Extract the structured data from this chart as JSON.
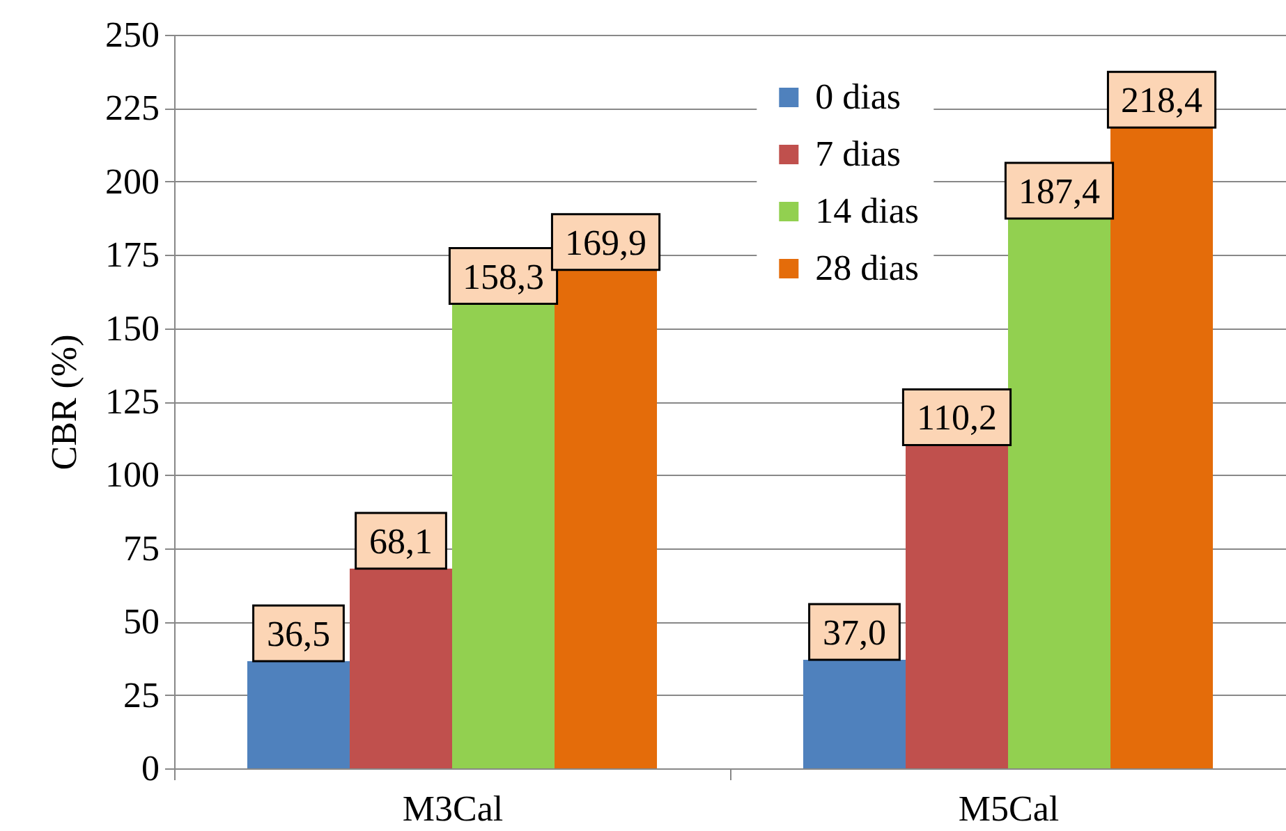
{
  "chart_data": {
    "type": "bar",
    "ylabel": "CBR (%)",
    "categories": [
      "M3Cal",
      "M5Cal"
    ],
    "series": [
      {
        "name": "0 dias",
        "color": "#4f81bd",
        "values": [
          36.5,
          37.0
        ],
        "value_labels": [
          "36,5",
          "37,0"
        ]
      },
      {
        "name": "7 dias",
        "color": "#c0504d",
        "values": [
          68.1,
          110.2
        ],
        "value_labels": [
          "68,1",
          "110,2"
        ]
      },
      {
        "name": "14 dias",
        "color": "#92d050",
        "values": [
          158.3,
          187.4
        ],
        "value_labels": [
          "158,3",
          "187,4"
        ]
      },
      {
        "name": "28 dias",
        "color": "#e46c0a",
        "values": [
          169.9,
          218.4
        ],
        "value_labels": [
          "169,9",
          "218,4"
        ]
      }
    ],
    "ylim": [
      0,
      250
    ],
    "yticks": [
      0,
      25,
      50,
      75,
      100,
      125,
      150,
      175,
      200,
      225,
      250
    ],
    "grid": "y",
    "legend": "top right"
  }
}
